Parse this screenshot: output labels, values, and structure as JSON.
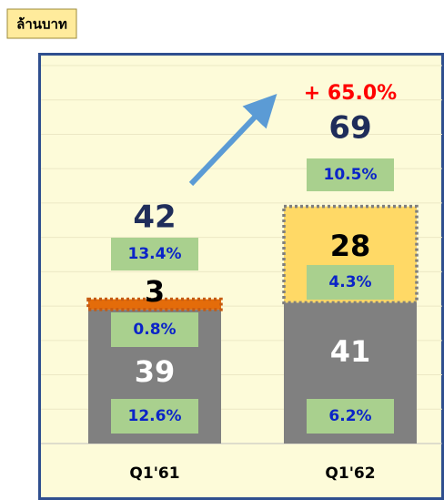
{
  "unit_label": "ล้านบาท",
  "chart_data": {
    "type": "stacked_bar",
    "categories": [
      "Q1'61",
      "Q1'62"
    ],
    "series": [
      {
        "color": "#808080",
        "values": [
          39,
          41
        ],
        "share_labels": [
          "12.6%",
          "6.2%"
        ]
      },
      {
        "colors": [
          "#e46c0a",
          "#ffd966"
        ],
        "values": [
          3,
          28
        ],
        "share_labels": [
          "0.8%",
          "4.3%"
        ]
      }
    ],
    "totals": [
      42,
      69
    ],
    "total_share_labels": [
      "13.4%",
      "10.5%"
    ],
    "annotation": "+ 65.0%",
    "ylim": [
      0,
      110
    ],
    "yticks": [
      0,
      10,
      20,
      30,
      40,
      50,
      60,
      70,
      80,
      90,
      100,
      110
    ],
    "grid": true
  }
}
